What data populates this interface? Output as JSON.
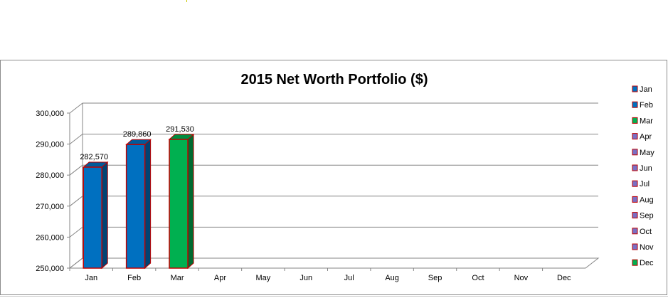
{
  "chart_data": {
    "type": "bar",
    "title": "2015 Net Worth Portfolio ($)",
    "xlabel": "",
    "ylabel": "",
    "categories": [
      "Jan",
      "Feb",
      "Mar",
      "Apr",
      "May",
      "Jun",
      "Jul",
      "Aug",
      "Sep",
      "Oct",
      "Nov",
      "Dec"
    ],
    "series": [
      {
        "values": [
          282570,
          289860,
          291530,
          null,
          null,
          null,
          null,
          null,
          null,
          null,
          null,
          null
        ]
      }
    ],
    "data_labels": [
      "282,570",
      "289,860",
      "291,530"
    ],
    "ylim": [
      250000,
      300000
    ],
    "yticks": [
      250000,
      260000,
      270000,
      280000,
      290000,
      300000
    ],
    "ytick_labels": [
      "250,000",
      "260,000",
      "270,000",
      "280,000",
      "290,000",
      "300,000"
    ],
    "grid": true,
    "style": "3d-column",
    "legend": {
      "placement": "right",
      "entries": [
        "Jan",
        "Feb",
        "Mar",
        "Apr",
        "May",
        "Jun",
        "Jul",
        "Aug",
        "Sep",
        "Oct",
        "Nov",
        "Dec"
      ]
    },
    "colors": {
      "Jan": "#0070c0",
      "Feb": "#0070c0",
      "Mar": "#00b050",
      "Apr": "#7a6fc4",
      "May": "#7a6fc4",
      "Jun": "#7a6fc4",
      "Jul": "#7a6fc4",
      "Aug": "#7a6fc4",
      "Sep": "#7a6fc4",
      "Oct": "#7a6fc4",
      "Nov": "#7a6fc4",
      "Dec": "#00b050",
      "bar_outline": "#c00000",
      "gridline": "#868686"
    }
  }
}
